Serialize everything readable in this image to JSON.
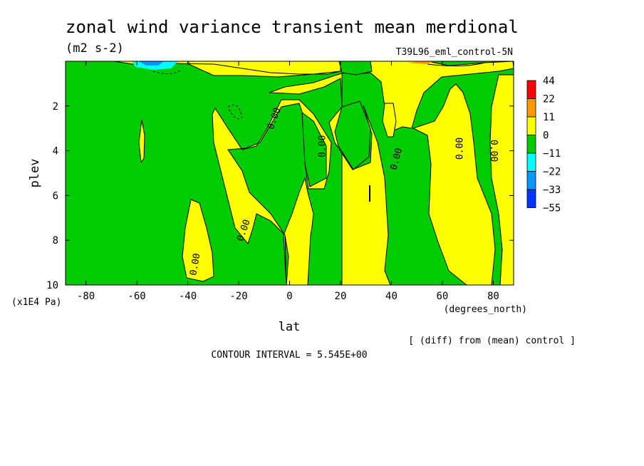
{
  "chart_data": {
    "type": "heatmap",
    "title": "zonal wind variance transient mean merdional",
    "units": "(m2 s-2)",
    "run_label": "T39L96_eml_control-5N",
    "xlabel": "lat",
    "x_unit_label": "(degrees_north)",
    "ylabel": "plev",
    "y_unit_label": "(x1E4 Pa)",
    "xlim": [
      -88,
      88
    ],
    "ylim": [
      0,
      10
    ],
    "y_inverted": true,
    "x_ticks": [
      -80,
      -60,
      -40,
      -20,
      0,
      20,
      40,
      60,
      80
    ],
    "y_ticks": [
      2,
      4,
      6,
      8,
      10
    ],
    "colorbar": {
      "levels": [
        "44",
        "22",
        "11",
        "0",
        "−11",
        "−22",
        "−33",
        "−55"
      ],
      "colors": [
        "#ff0000",
        "#ff9900",
        "#ffff00",
        "#00cc00",
        "#00ffff",
        "#0099ff",
        "#0033ff"
      ]
    },
    "contour_labels": [
      {
        "text": "0.00",
        "lat": -5,
        "plev": 2.6,
        "angle": -70
      },
      {
        "text": "0.00",
        "lat": 14,
        "plev": 3.8,
        "angle": -90
      },
      {
        "text": "0.00",
        "lat": 43,
        "plev": 4.4,
        "angle": -75
      },
      {
        "text": "0.00",
        "lat": 68,
        "plev": 3.9,
        "angle": -90
      },
      {
        "text": "0.00",
        "lat": 79,
        "plev": 4.0,
        "angle": 90
      },
      {
        "text": "0.00",
        "lat": -17,
        "plev": 7.6,
        "angle": -70
      },
      {
        "text": "0.00",
        "lat": -36,
        "plev": 9.1,
        "angle": -80
      }
    ],
    "contour_interval_text": "CONTOUR INTERVAL = 5.545E+00",
    "footnote": "[ (diff) from (mean) control ]"
  }
}
